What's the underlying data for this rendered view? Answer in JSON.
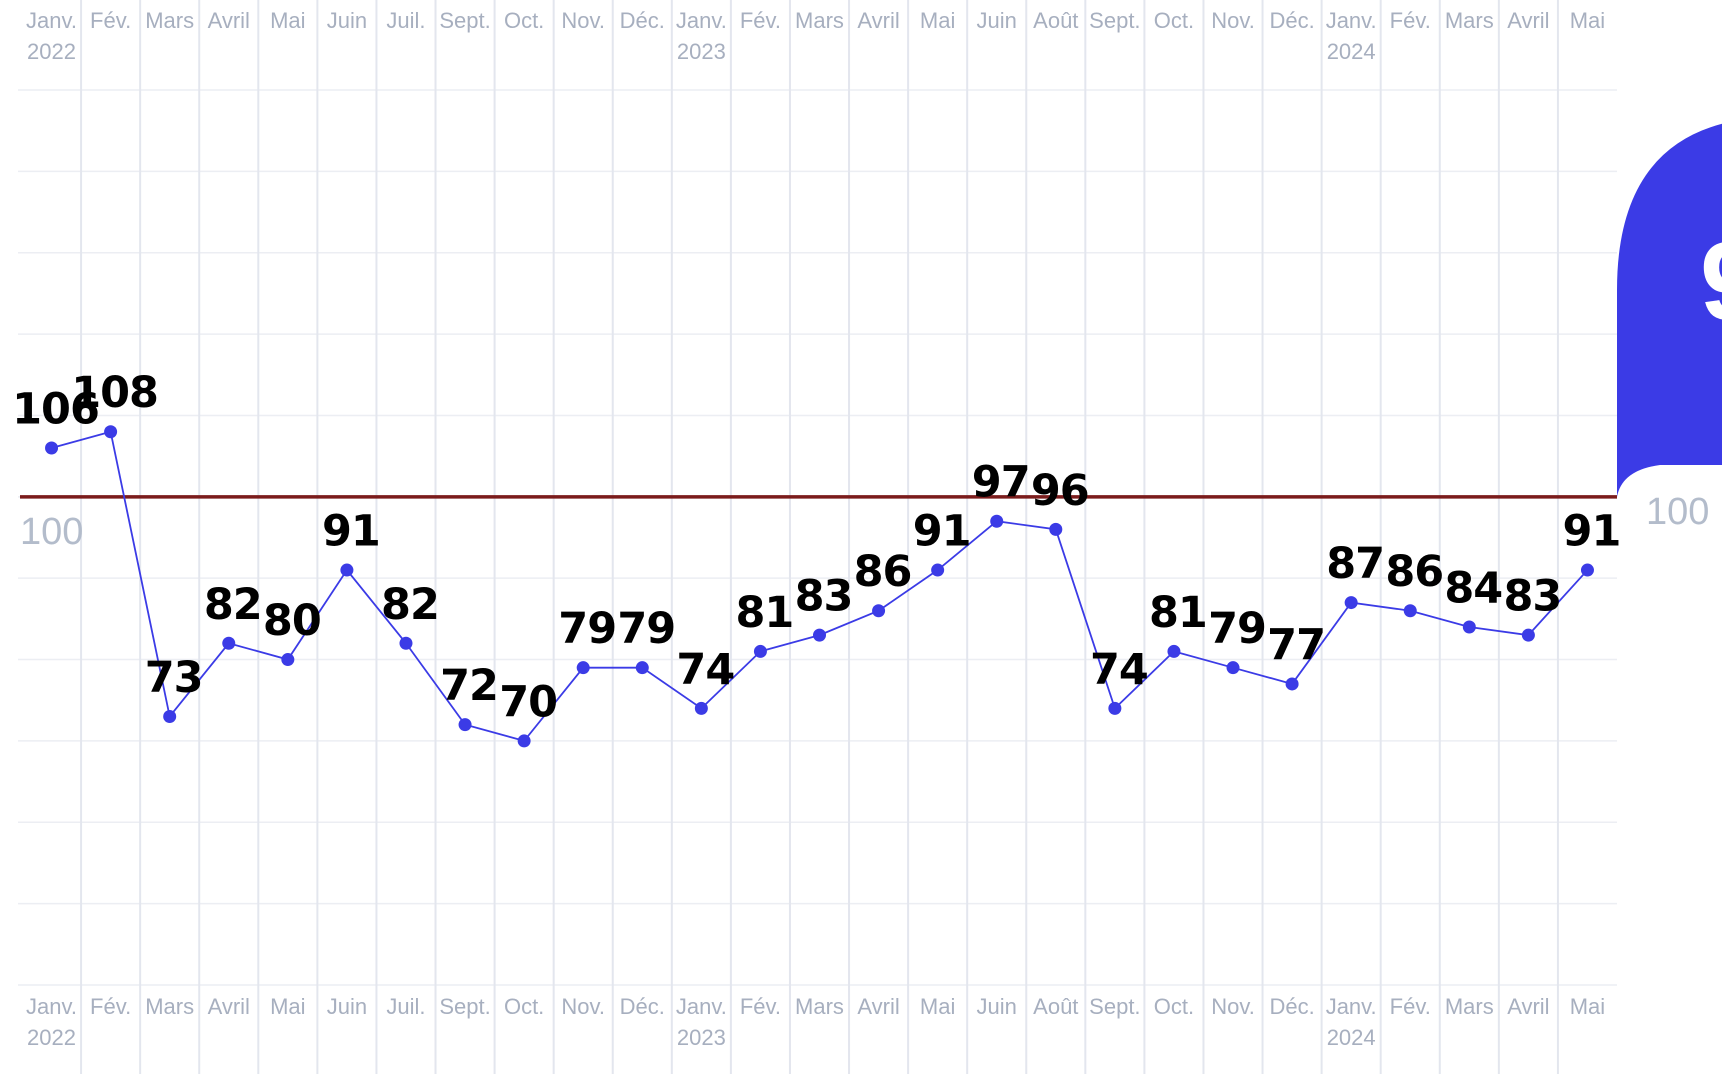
{
  "chart_data": {
    "type": "line",
    "categories": [
      "Janv. 2022",
      "Fév.",
      "Mars",
      "Avril",
      "Mai",
      "Juin",
      "Juil.",
      "Sept.",
      "Oct.",
      "Nov.",
      "Déc.",
      "Janv. 2023",
      "Fév.",
      "Mars",
      "Avril",
      "Mai",
      "Juin",
      "Août",
      "Sept.",
      "Oct.",
      "Nov.",
      "Déc.",
      "Janv. 2024",
      "Fév.",
      "Mars",
      "Avril",
      "Mai"
    ],
    "series": [
      {
        "color": "#3b3be6",
        "values": [
          106,
          108,
          73,
          82,
          80,
          91,
          82,
          72,
          70,
          79,
          79,
          74,
          81,
          83,
          86,
          91,
          97,
          96,
          74,
          81,
          79,
          77,
          87,
          86,
          84,
          83,
          91
        ]
      }
    ],
    "ylim": [
      40,
      150
    ],
    "ygrid": [
      40,
      50,
      60,
      70,
      80,
      90,
      100,
      110,
      120,
      130,
      140,
      150
    ],
    "reference_line": {
      "value": 100,
      "color": "#7b1c1c"
    },
    "callout_color": "#3b3be6"
  }
}
